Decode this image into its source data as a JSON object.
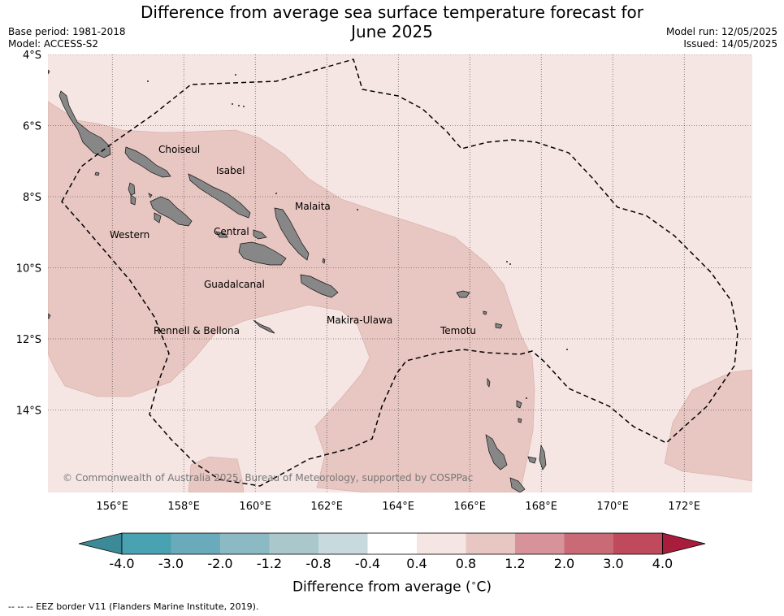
{
  "header": {
    "title_line1": "Difference from average sea surface temperature forecast for",
    "title_line2": "June 2025",
    "base_period": "Base period: 1981-2018",
    "model": "Model: ACCESS-S2",
    "model_run": "Model run: 12/05/2025",
    "issued": "Issued: 14/05/2025"
  },
  "map": {
    "lon_range": [
      154.2,
      174.0
    ],
    "lat_range": [
      -4.0,
      -16.3
    ],
    "lon_ticks": [
      "156°E",
      "158°E",
      "160°E",
      "162°E",
      "164°E",
      "166°E",
      "168°E",
      "170°E",
      "172°E"
    ],
    "lat_ticks": [
      "4°S",
      "6°S",
      "8°S",
      "10°S",
      "12°S",
      "14°S"
    ],
    "grid": true,
    "province_labels": {
      "choiseul": "Choiseul",
      "isabel": "Isabel",
      "malaita": "Malaita",
      "western": "Western",
      "central": "Central",
      "guadalcanal": "Guadalcanal",
      "rennell_bellona": "Rennell & Bellona",
      "makira_ulawa": "Makira-Ulawa",
      "temotu": "Temotu"
    },
    "copyright": "© Commonwealth of Australia 2025, Bureau of Meteorology, supported by COSPPac",
    "background_category": "0.4 to 0.8",
    "anomaly_category": "0.8 to 1.2"
  },
  "colorbar": {
    "labels": [
      "-4.0",
      "-3.0",
      "-2.0",
      "-1.2",
      "-0.8",
      "-0.4",
      "0.4",
      "0.8",
      "1.2",
      "2.0",
      "3.0",
      "4.0"
    ],
    "colors": [
      "#3c8a97",
      "#49a2b2",
      "#6aabbb",
      "#8cbac4",
      "#aac8cc",
      "#c8dadd",
      "#ffffff",
      "#f5e6e4",
      "#e8c6c1",
      "#d8939a",
      "#c96a76",
      "#be4a5c",
      "#a81c3c"
    ],
    "title": "Difference from average ($^\\circ$C)"
  },
  "footer": {
    "eez_note": "--  --  -- EEZ border V11 (Flanders Marine Institute, 2019)."
  }
}
